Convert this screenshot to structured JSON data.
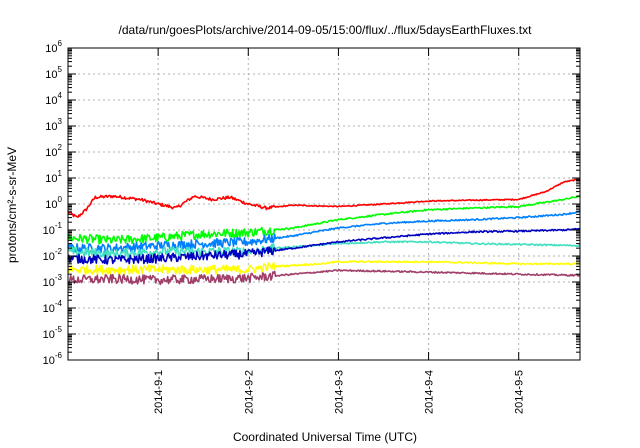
{
  "chart_data": {
    "type": "line",
    "title": "/data/run/goesPlots/archive/2014-09-05/15:00/flux/../flux/5daysEarthFluxes.txt",
    "xlabel": "Coordinated Universal Time (UTC)",
    "ylabel": "protons/cm²-s-sr-MeV",
    "y_scale": "log",
    "ylim_exponents": [
      -6,
      6
    ],
    "x_ticks": [
      "2014-9-1",
      "2014-9-2",
      "2014-9-3",
      "2014-9-4",
      "2014-9-5"
    ],
    "x_tick_positions_days": [
      1,
      2,
      3,
      4,
      5
    ],
    "xlim_days": [
      0,
      5.68
    ],
    "grid": true,
    "series": [
      {
        "color": "#ff0000",
        "x": [
          0,
          0.1,
          0.2,
          0.3,
          0.5,
          0.8,
          1.0,
          1.2,
          1.4,
          1.6,
          1.8,
          2.0,
          2.2,
          2.5,
          3.0,
          3.5,
          4.0,
          4.5,
          5.0,
          5.3,
          5.5,
          5.68
        ],
        "values": [
          0.5,
          0.3,
          0.6,
          1.8,
          2.0,
          1.5,
          1.0,
          0.7,
          2.0,
          1.5,
          1.8,
          1.0,
          0.7,
          0.9,
          0.8,
          1.0,
          1.3,
          1.4,
          1.5,
          3.0,
          7.0,
          9.0
        ]
      },
      {
        "color": "#00ff00",
        "x": [
          0,
          0.5,
          1.0,
          1.5,
          2.0,
          2.5,
          3.0,
          3.5,
          4.0,
          4.5,
          5.0,
          5.5,
          5.68
        ],
        "values": [
          0.05,
          0.04,
          0.05,
          0.07,
          0.08,
          0.12,
          0.25,
          0.4,
          0.6,
          0.7,
          0.8,
          1.5,
          2.0
        ]
      },
      {
        "color": "#0080ff",
        "x": [
          0,
          0.5,
          1.0,
          1.5,
          2.0,
          2.5,
          3.0,
          3.5,
          4.0,
          4.5,
          5.0,
          5.5,
          5.68
        ],
        "values": [
          0.02,
          0.02,
          0.025,
          0.03,
          0.035,
          0.06,
          0.12,
          0.18,
          0.22,
          0.25,
          0.3,
          0.4,
          0.5
        ]
      },
      {
        "color": "#40e0c0",
        "x": [
          0,
          0.5,
          1.0,
          1.5,
          2.0,
          2.3,
          2.7,
          3.0,
          3.5,
          4.0,
          4.5,
          5.0,
          5.68
        ],
        "values": [
          0.015,
          0.012,
          0.015,
          0.015,
          0.015,
          0.02,
          0.025,
          0.03,
          0.035,
          0.035,
          0.03,
          0.028,
          0.025
        ]
      },
      {
        "color": "#0000c0",
        "x": [
          0,
          0.5,
          1.0,
          1.5,
          2.0,
          2.5,
          3.0,
          3.5,
          4.0,
          4.5,
          5.0,
          5.5,
          5.68
        ],
        "values": [
          0.008,
          0.007,
          0.008,
          0.01,
          0.012,
          0.02,
          0.035,
          0.05,
          0.07,
          0.085,
          0.09,
          0.1,
          0.11
        ]
      },
      {
        "color": "#ffff00",
        "x": [
          0,
          0.5,
          1.0,
          1.5,
          2.0,
          2.3,
          2.8,
          3.0,
          3.5,
          4.0,
          4.5,
          5.0,
          5.68
        ],
        "values": [
          0.003,
          0.003,
          0.003,
          0.003,
          0.003,
          0.004,
          0.005,
          0.006,
          0.006,
          0.006,
          0.0055,
          0.005,
          0.005
        ]
      },
      {
        "color": "#a0406a",
        "x": [
          0,
          0.5,
          1.0,
          1.5,
          2.0,
          2.5,
          3.0,
          3.5,
          4.0,
          4.5,
          5.0,
          5.68
        ],
        "values": [
          0.0012,
          0.0013,
          0.0012,
          0.0013,
          0.0014,
          0.002,
          0.0028,
          0.0026,
          0.0024,
          0.0022,
          0.002,
          0.0018
        ]
      }
    ]
  }
}
